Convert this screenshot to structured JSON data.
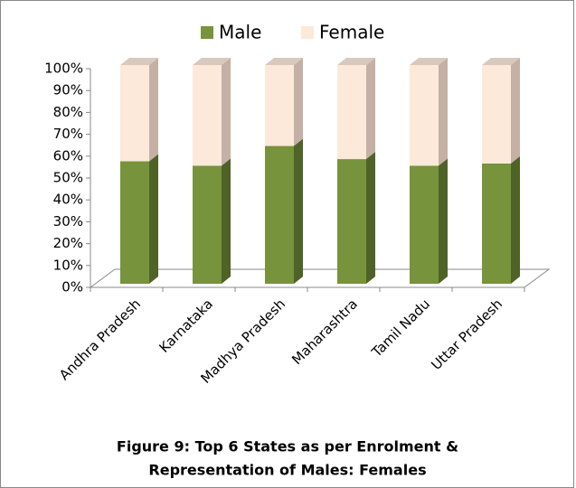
{
  "chart_data": {
    "type": "stacked_bar_3d",
    "categories": [
      "Andhra Pradesh",
      "Karnataka",
      "Madhya Pradesh",
      "Maharashtra",
      "Tamil Nadu",
      "Uttar Pradesh"
    ],
    "series": [
      {
        "name": "Male",
        "color": "#77933c",
        "values": [
          56,
          54,
          63,
          57,
          54,
          55
        ]
      },
      {
        "name": "Female",
        "color": "#fde9d9",
        "values": [
          44,
          46,
          37,
          43,
          46,
          45
        ]
      }
    ],
    "ylim": [
      0,
      100
    ],
    "yticks": [
      {
        "value": 0,
        "label": "0%"
      },
      {
        "value": 10,
        "label": "10%"
      },
      {
        "value": 20,
        "label": "20%"
      },
      {
        "value": 30,
        "label": "30%"
      },
      {
        "value": 40,
        "label": "40%"
      },
      {
        "value": 50,
        "label": "50%"
      },
      {
        "value": 60,
        "label": "60%"
      },
      {
        "value": 70,
        "label": "70%"
      },
      {
        "value": 80,
        "label": "80%"
      },
      {
        "value": 90,
        "label": "90%"
      },
      {
        "value": 100,
        "label": "100%"
      }
    ],
    "legend": "top",
    "caption": [
      "Figure 9: Top 6 States as per Enrolment &",
      "Representation of Males: Females"
    ]
  }
}
